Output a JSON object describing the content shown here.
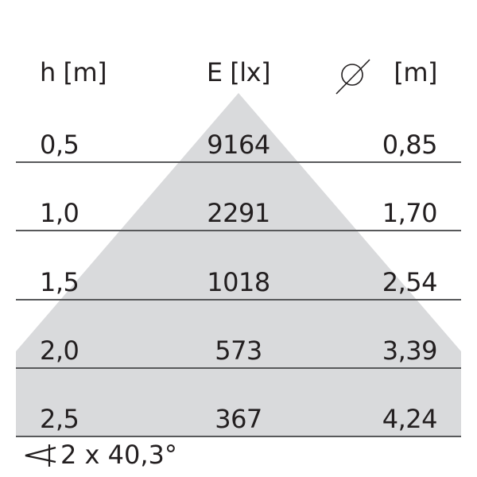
{
  "headers": {
    "height": "h [m]",
    "illuminance": "E [lx]",
    "diameter_symbol": "diameter-icon",
    "diameter_unit": "[m]"
  },
  "rows": [
    {
      "h": "0,5",
      "e": "9164",
      "d": "0,85"
    },
    {
      "h": "1,0",
      "e": "2291",
      "d": "1,70"
    },
    {
      "h": "1,5",
      "e": "1018",
      "d": "2,54"
    },
    {
      "h": "2,0",
      "e": "573",
      "d": "3,39"
    },
    {
      "h": "2,5",
      "e": "367",
      "d": "4,24"
    }
  ],
  "beam_angle": "2 x 40,3°",
  "colors": {
    "cone": "#d9dadc",
    "lines": "#58595b",
    "text": "#231f20"
  }
}
